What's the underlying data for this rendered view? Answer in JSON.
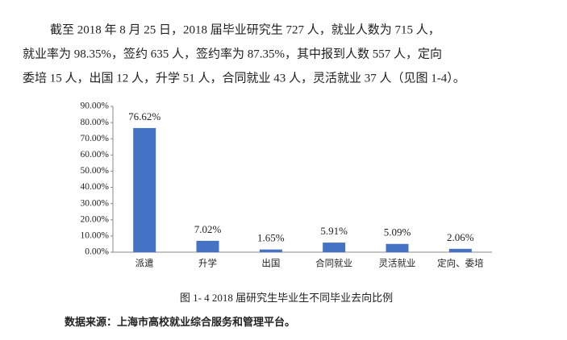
{
  "paragraph": [
    "截至 2018 年 8 月 25 日，2018 届毕业研究生 727 人，就业人数为 715 人，",
    "就业率为 98.35%，签约 635 人，签约率为 87.35%，其中报到人数 557 人，定向",
    "委培 15 人，出国 12 人，升学 51 人，合同就业 43 人，灵活就业 37 人（见图 1-4）。"
  ],
  "chart_data": {
    "type": "bar",
    "categories": [
      "派遣",
      "升学",
      "出国",
      "合同就业",
      "灵活就业",
      "定向、委培"
    ],
    "values": [
      76.62,
      7.02,
      1.65,
      5.91,
      5.09,
      2.06
    ],
    "value_labels": [
      "76.62%",
      "7.02%",
      "1.65%",
      "5.91%",
      "5.09%",
      "2.06%"
    ],
    "color": "#4472c4",
    "ylim": [
      0,
      90
    ],
    "yticks": [
      {
        "value": 0,
        "label": "0.00%"
      },
      {
        "value": 10,
        "label": "10.00%"
      },
      {
        "value": 20,
        "label": "20.00%"
      },
      {
        "value": 30,
        "label": "30.00%"
      },
      {
        "value": 40,
        "label": "40.00%"
      },
      {
        "value": 50,
        "label": "50.00%"
      },
      {
        "value": 60,
        "label": "60.00%"
      },
      {
        "value": 70,
        "label": "70.00%"
      },
      {
        "value": 80,
        "label": "80.00%"
      },
      {
        "value": 90,
        "label": "90.00%"
      }
    ]
  },
  "caption": "图 1- 4 2018 届研究生毕业生不同毕业去向比例",
  "source": "数据来源：上海市高校就业综合服务和管理平台。"
}
